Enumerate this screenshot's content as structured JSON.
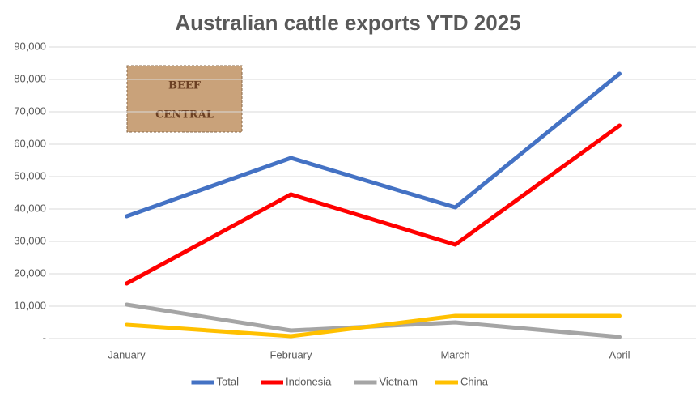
{
  "chart_data": {
    "type": "line",
    "title": "Australian cattle exports YTD 2025",
    "logo": {
      "top": "BEEF",
      "bottom": "CENTRAL"
    },
    "categories": [
      "January",
      "February",
      "March",
      "April"
    ],
    "series": [
      {
        "name": "Total",
        "color": "#4472c4",
        "values": [
          37750,
          55750,
          40500,
          81750
        ]
      },
      {
        "name": "Indonesia",
        "color": "#ff0000",
        "values": [
          17000,
          44500,
          29000,
          65750
        ]
      },
      {
        "name": "Vietnam",
        "color": "#a5a5a5",
        "values": [
          10500,
          2500,
          5000,
          500
        ]
      },
      {
        "name": "China",
        "color": "#ffc000",
        "values": [
          4250,
          750,
          7000,
          7000
        ]
      }
    ],
    "ylim": [
      0,
      90000
    ],
    "yticks": [
      {
        "value": 0,
        "label": "-"
      },
      {
        "value": 10000,
        "label": "10,000"
      },
      {
        "value": 20000,
        "label": "20,000"
      },
      {
        "value": 30000,
        "label": "30,000"
      },
      {
        "value": 40000,
        "label": "40,000"
      },
      {
        "value": 50000,
        "label": "50,000"
      },
      {
        "value": 60000,
        "label": "60,000"
      },
      {
        "value": 70000,
        "label": "70,000"
      },
      {
        "value": 80000,
        "label": "80,000"
      },
      {
        "value": 90000,
        "label": "90,000"
      }
    ],
    "grid": true,
    "legend": "bottom"
  }
}
